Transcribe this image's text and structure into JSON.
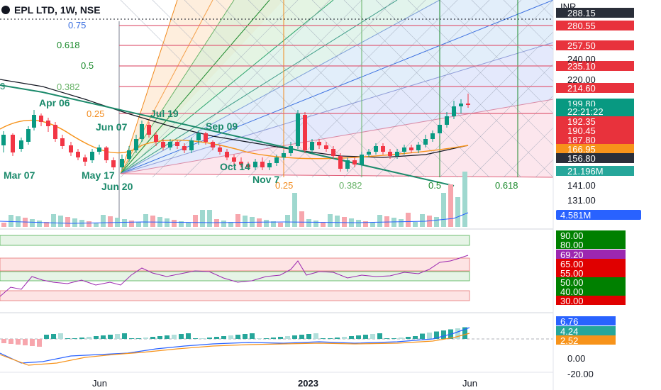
{
  "header": {
    "title": "EPL LTD, 1W, NSE",
    "currency": "INR"
  },
  "price_axis": {
    "boxes": [
      {
        "label": "288.15",
        "color": "#2a2e39"
      },
      {
        "label": "280.55",
        "color": "#e8323c"
      },
      {
        "label": "257.50",
        "color": "#e8323c"
      },
      {
        "label": "235.10",
        "color": "#e8323c"
      },
      {
        "label": "214.60",
        "color": "#e8323c"
      },
      {
        "label": "199.80",
        "color": "#089981"
      },
      {
        "label": "22:21:22",
        "color": "#089981"
      },
      {
        "label": "192.35",
        "color": "#e8323c"
      },
      {
        "label": "190.45",
        "color": "#e8323c"
      },
      {
        "label": "187.80",
        "color": "#e8323c"
      },
      {
        "label": "166.95",
        "color": "#f7931a"
      },
      {
        "label": "156.80",
        "color": "#2a2e39"
      },
      {
        "label": "21.196M",
        "color": "#26a69a"
      }
    ],
    "plain_labels": [
      "240.00",
      "220.00",
      "141.00",
      "131.00"
    ]
  },
  "fib_levels": [
    {
      "label": "0.75",
      "color": "#3a6fe0"
    },
    {
      "label": "0.618",
      "color": "#1b8a2c"
    },
    {
      "label": "0.5",
      "color": "#1b8a2c"
    },
    {
      "label": "0.382",
      "color": "#66b266"
    },
    {
      "label": "0.25",
      "color": "#f28a1c"
    },
    {
      "label": "3",
      "color": "#1b8a6b"
    }
  ],
  "fib_bottom": [
    {
      "label": "0.25",
      "color": "#f28a1c"
    },
    {
      "label": "0.382",
      "color": "#66b266"
    },
    {
      "label": "0.5",
      "color": "#1b8a2c"
    },
    {
      "label": "0.618",
      "color": "#1b8a2c"
    }
  ],
  "date_labels": [
    "Apr 06",
    "Jul 19",
    "Jun 07",
    "Sep 09",
    "Mar 07",
    "May 17",
    "Jun 20",
    "Nov 7",
    "Oct 14"
  ],
  "volume_panel": {
    "value": "4.581M",
    "color": "#2962ff"
  },
  "rsi_panel": {
    "levels": [
      {
        "label": "90.00",
        "color": "#008000"
      },
      {
        "label": "80.00",
        "color": "#008000"
      },
      {
        "label": "69.20",
        "color": "#9c27b0"
      },
      {
        "label": "65.00",
        "color": "#e00000"
      },
      {
        "label": "55.00",
        "color": "#e00000"
      },
      {
        "label": "50.00",
        "color": "#008000"
      },
      {
        "label": "40.00",
        "color": "#008000"
      },
      {
        "label": "30.00",
        "color": "#e00000"
      }
    ]
  },
  "macd_panel": {
    "values": [
      {
        "label": "6.76",
        "color": "#2962ff"
      },
      {
        "label": "4.24",
        "color": "#26a69a"
      },
      {
        "label": "2.52",
        "color": "#f7931a"
      }
    ],
    "plain": [
      "0.00",
      "-20.00"
    ]
  },
  "time_axis": [
    "Jun",
    "2023",
    "Jun"
  ],
  "colors": {
    "up": "#089981",
    "down": "#f23645",
    "ema_orange": "#f7931a",
    "sma_black": "#131722"
  }
}
